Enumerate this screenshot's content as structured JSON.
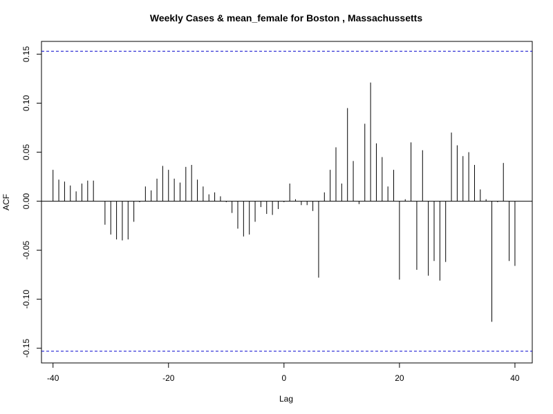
{
  "chart_data": {
    "type": "bar",
    "title": "Weekly Cases & mean_female for Boston , Massachussetts",
    "xlabel": "Lag",
    "ylabel": "ACF",
    "xlim": [
      -42,
      43
    ],
    "ylim": [
      -0.165,
      0.163
    ],
    "x_ticks": [
      -40,
      -20,
      0,
      20,
      40
    ],
    "x_tick_labels": [
      "-40",
      "-20",
      "0",
      "20",
      "40"
    ],
    "y_ticks": [
      -0.15,
      -0.1,
      -0.05,
      0.0,
      0.05,
      0.1,
      0.15
    ],
    "y_tick_labels": [
      "-0.15",
      "-0.10",
      "-0.05",
      "0.00",
      "0.05",
      "0.10",
      "0.15"
    ],
    "confidence_bound": 0.153,
    "confidence_color": "#0000cc",
    "lags": [
      -40,
      -39,
      -38,
      -37,
      -36,
      -35,
      -34,
      -33,
      -32,
      -31,
      -30,
      -29,
      -28,
      -27,
      -26,
      -25,
      -24,
      -23,
      -22,
      -21,
      -20,
      -19,
      -18,
      -17,
      -16,
      -15,
      -14,
      -13,
      -12,
      -11,
      -10,
      -9,
      -8,
      -7,
      -6,
      -5,
      -4,
      -3,
      -2,
      -1,
      0,
      1,
      2,
      3,
      4,
      5,
      6,
      7,
      8,
      9,
      10,
      11,
      12,
      13,
      14,
      15,
      16,
      17,
      18,
      19,
      20,
      21,
      22,
      23,
      24,
      25,
      26,
      27,
      28,
      29,
      30,
      31,
      32,
      33,
      34,
      35,
      36,
      37,
      38,
      39,
      40
    ],
    "values": [
      0.032,
      0.022,
      0.02,
      0.016,
      0.01,
      0.018,
      0.021,
      0.021,
      0.0,
      -0.024,
      -0.034,
      -0.039,
      -0.04,
      -0.039,
      -0.021,
      -0.001,
      0.015,
      0.011,
      0.023,
      0.036,
      0.032,
      0.023,
      0.019,
      0.035,
      0.037,
      0.022,
      0.015,
      0.007,
      0.009,
      0.005,
      -0.001,
      -0.012,
      -0.028,
      -0.036,
      -0.034,
      -0.021,
      -0.006,
      -0.013,
      -0.014,
      -0.008,
      -0.001,
      0.018,
      0.002,
      -0.004,
      -0.004,
      -0.01,
      -0.078,
      0.009,
      0.032,
      0.055,
      0.018,
      0.095,
      0.041,
      -0.003,
      0.079,
      0.121,
      0.059,
      0.045,
      0.015,
      0.032,
      -0.08,
      0.002,
      0.06,
      -0.07,
      0.052,
      -0.076,
      -0.061,
      -0.081,
      -0.062,
      0.07,
      0.057,
      0.046,
      0.05,
      0.037,
      0.012,
      0.002,
      -0.123,
      -0.001,
      0.039,
      -0.061,
      -0.066
    ]
  }
}
